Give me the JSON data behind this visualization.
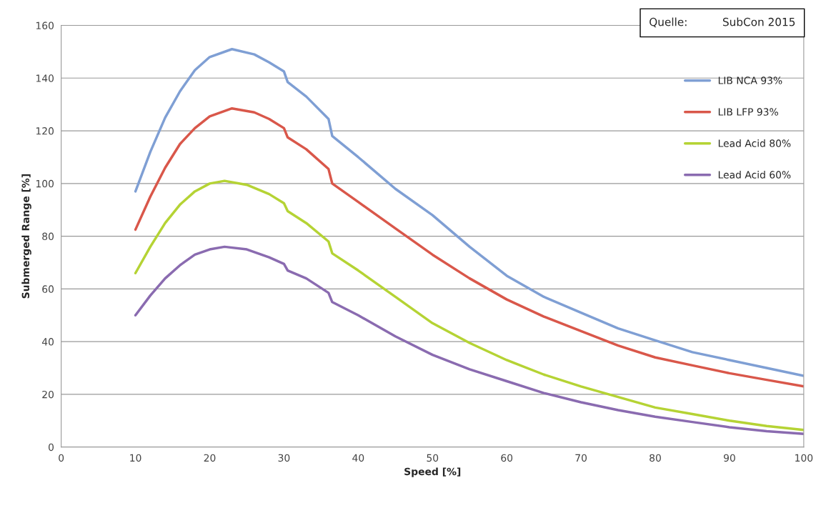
{
  "chart_data": {
    "type": "line",
    "xlabel": "Speed [%]",
    "ylabel": "Submerged Range [%]",
    "xlim": [
      0,
      100
    ],
    "xticks": [
      0,
      10,
      20,
      30,
      40,
      50,
      60,
      70,
      80,
      90,
      100
    ],
    "ylim": [
      0,
      160
    ],
    "yticks": [
      0,
      20,
      40,
      60,
      80,
      100,
      120,
      140,
      160
    ],
    "grid": "y",
    "legend": "right",
    "marker": "none",
    "line_style": "solid",
    "annotations": [
      "Quelle:          SubCon 2015"
    ],
    "series": [
      {
        "name": "LIB NCA 93%",
        "color": "#7f9fd4",
        "x": [
          10,
          12,
          14,
          16,
          18,
          20,
          23,
          26,
          28,
          30,
          30.5,
          33,
          36,
          36.5,
          40,
          45,
          50,
          55,
          60,
          65,
          70,
          75,
          80,
          85,
          90,
          95,
          100
        ],
        "values": [
          97,
          112,
          125,
          135,
          143,
          148,
          151,
          149,
          146,
          142.5,
          138.5,
          133,
          124.5,
          118,
          110,
          98,
          88,
          76,
          65,
          57,
          51,
          45,
          40.5,
          36,
          33,
          30,
          27
        ]
      },
      {
        "name": "LIB LFP 93%",
        "color": "#d9574a",
        "x": [
          10,
          12,
          14,
          16,
          18,
          20,
          23,
          26,
          28,
          30,
          30.5,
          33,
          36,
          36.5,
          40,
          45,
          50,
          55,
          60,
          65,
          70,
          75,
          80,
          85,
          90,
          95,
          100
        ],
        "values": [
          82.5,
          95,
          106,
          115,
          121,
          125.5,
          128.5,
          127,
          124.5,
          121,
          117.5,
          113,
          105.5,
          100,
          93,
          83,
          73,
          64,
          56,
          49.5,
          44,
          38.5,
          34,
          31,
          28,
          25.5,
          23
        ]
      },
      {
        "name": "Lead Acid 80%",
        "color": "#b5d334",
        "x": [
          10,
          12,
          14,
          16,
          18,
          20,
          22,
          25,
          28,
          30,
          30.5,
          33,
          36,
          36.5,
          40,
          45,
          50,
          55,
          60,
          65,
          70,
          75,
          80,
          85,
          90,
          95,
          100
        ],
        "values": [
          66,
          76,
          85,
          92,
          97,
          100,
          101,
          99.5,
          96,
          92.5,
          89.5,
          85,
          78,
          73.5,
          67,
          57,
          47,
          39.5,
          33,
          27.5,
          23,
          19,
          15,
          12.5,
          10,
          8,
          6.5
        ]
      },
      {
        "name": "Lead Acid 60%",
        "color": "#8a6bb0",
        "x": [
          10,
          12,
          14,
          16,
          18,
          20,
          22,
          25,
          28,
          30,
          30.5,
          33,
          36,
          36.5,
          40,
          45,
          50,
          55,
          60,
          65,
          70,
          75,
          80,
          85,
          90,
          95,
          100
        ],
        "values": [
          50,
          57.5,
          64,
          69,
          73,
          75,
          76,
          75,
          72,
          69.5,
          67,
          64,
          58.5,
          55,
          50,
          42,
          35,
          29.5,
          25,
          20.5,
          17,
          14,
          11.5,
          9.5,
          7.5,
          6,
          5
        ]
      }
    ]
  }
}
